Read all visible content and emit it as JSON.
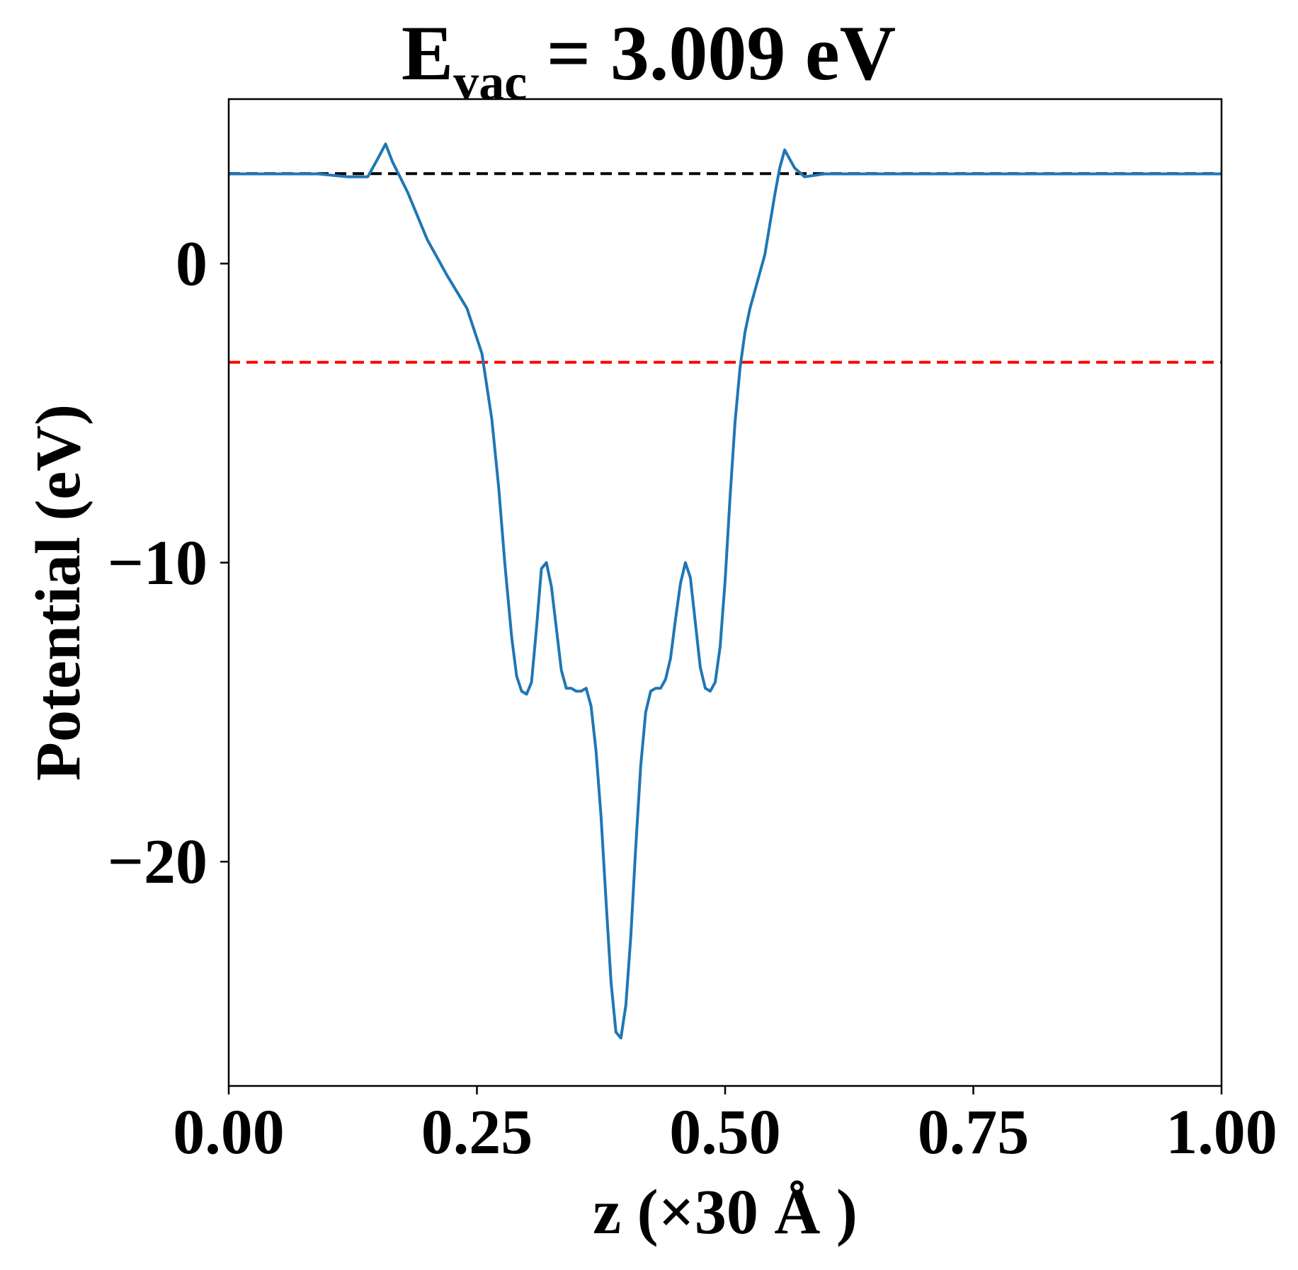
{
  "chart_data": {
    "type": "line",
    "title": {
      "prefix": "E",
      "subscript": "vac",
      "suffix": " = 3.009 eV"
    },
    "xlabel": "z (×30 Å )",
    "ylabel": "Potential (eV)",
    "xlim": [
      0.0,
      1.0
    ],
    "ylim": [
      -27.5,
      5.5
    ],
    "xticks": [
      {
        "value": 0.0,
        "label": "0.00"
      },
      {
        "value": 0.25,
        "label": "0.25"
      },
      {
        "value": 0.5,
        "label": "0.50"
      },
      {
        "value": 0.75,
        "label": "0.75"
      },
      {
        "value": 1.0,
        "label": "1.00"
      }
    ],
    "yticks": [
      {
        "value": 0,
        "label": "0"
      },
      {
        "value": -10,
        "label": "−10"
      },
      {
        "value": -20,
        "label": "−20"
      }
    ],
    "grid": false,
    "legend": "none",
    "series": [
      {
        "color": "#1f77b4",
        "x": [
          0.0,
          0.03,
          0.06,
          0.09,
          0.12,
          0.14,
          0.15,
          0.158,
          0.165,
          0.18,
          0.2,
          0.22,
          0.24,
          0.255,
          0.265,
          0.272,
          0.278,
          0.285,
          0.29,
          0.295,
          0.3,
          0.305,
          0.31,
          0.315,
          0.32,
          0.325,
          0.33,
          0.335,
          0.34,
          0.345,
          0.35,
          0.355,
          0.36,
          0.365,
          0.37,
          0.375,
          0.38,
          0.385,
          0.39,
          0.395,
          0.4,
          0.405,
          0.41,
          0.415,
          0.42,
          0.425,
          0.43,
          0.435,
          0.44,
          0.445,
          0.45,
          0.455,
          0.46,
          0.465,
          0.47,
          0.475,
          0.48,
          0.485,
          0.49,
          0.495,
          0.5,
          0.505,
          0.51,
          0.515,
          0.52,
          0.525,
          0.53,
          0.535,
          0.54,
          0.545,
          0.55,
          0.555,
          0.56,
          0.57,
          0.58,
          0.6,
          0.62,
          0.64,
          0.65,
          0.655,
          0.66,
          0.67,
          0.68,
          0.7,
          0.75,
          0.8,
          0.85,
          0.9,
          0.95,
          1.0
        ],
        "y": [
          3.0,
          3.0,
          3.0,
          3.0,
          2.9,
          2.9,
          3.5,
          4.0,
          3.4,
          2.4,
          0.8,
          -0.4,
          -1.5,
          -3.0,
          -5.2,
          -7.5,
          -10.0,
          -12.5,
          -13.8,
          -14.3,
          -14.4,
          -14.0,
          -12.2,
          -10.2,
          -10.0,
          -10.8,
          -12.2,
          -13.6,
          -14.2,
          -14.2,
          -14.3,
          -14.3,
          -14.2,
          -14.8,
          -16.3,
          -18.5,
          -21.3,
          -24.0,
          -25.7,
          -25.9,
          -24.8,
          -22.5,
          -19.5,
          -16.8,
          -15.0,
          -14.3,
          -14.2,
          -14.2,
          -13.9,
          -13.2,
          -11.9,
          -10.7,
          -10.0,
          -10.5,
          -12.0,
          -13.5,
          -14.2,
          -14.3,
          -14.0,
          -12.8,
          -10.6,
          -7.8,
          -5.3,
          -3.5,
          -2.3,
          -1.5,
          -0.9,
          -0.3,
          0.3,
          1.3,
          2.3,
          3.2,
          3.8,
          3.2,
          2.9,
          3.0,
          3.0,
          3.0,
          3.0,
          3.0,
          3.0,
          3.0,
          3.0,
          3.0,
          3.0,
          3.0,
          3.0,
          3.0,
          3.0,
          3.0
        ]
      }
    ],
    "reference_lines": [
      {
        "y": 3.009,
        "color": "#000000",
        "style": "dashed"
      },
      {
        "y": -3.3,
        "color": "#ff0000",
        "style": "dashed"
      }
    ]
  }
}
